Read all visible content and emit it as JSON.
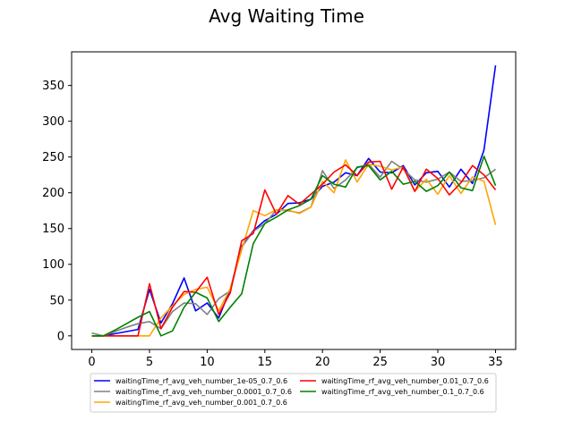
{
  "chart_data": {
    "type": "line",
    "title": "Avg Waiting Time",
    "xlabel": "",
    "ylabel": "",
    "xlim": [
      -1.75,
      36.75
    ],
    "ylim": [
      -19,
      397
    ],
    "xticks": [
      0,
      5,
      10,
      15,
      20,
      25,
      30,
      35
    ],
    "yticks": [
      0,
      50,
      100,
      150,
      200,
      250,
      300,
      350
    ],
    "grid": false,
    "legend_position": "below plot, two columns",
    "series": [
      {
        "name": "waitingTime_rf_avg_veh_number_1e-05_0.7_0.6",
        "color": "#0000ff",
        "x": [
          0,
          1,
          2,
          3,
          4,
          5,
          6,
          7,
          8,
          9,
          10,
          11,
          12,
          13,
          14,
          15,
          16,
          17,
          18,
          19,
          20,
          21,
          22,
          23,
          24,
          25,
          26,
          27,
          28,
          29,
          30,
          31,
          32,
          33,
          34,
          35
        ],
        "values": [
          0,
          0,
          3,
          6,
          9,
          65,
          18,
          45,
          81,
          35,
          46,
          25,
          65,
          125,
          147,
          161,
          170,
          185,
          186,
          191,
          209,
          215,
          228,
          224,
          248,
          229,
          228,
          238,
          211,
          228,
          230,
          208,
          233,
          213,
          260,
          378
        ]
      },
      {
        "name": "waitingTime_rf_avg_veh_number_0.0001_0.7_0.6",
        "color": "#808080",
        "x": [
          0,
          1,
          2,
          3,
          4,
          5,
          6,
          7,
          8,
          9,
          10,
          11,
          12,
          13,
          14,
          15,
          16,
          17,
          18,
          19,
          20,
          21,
          22,
          23,
          24,
          25,
          26,
          27,
          28,
          29,
          30,
          31,
          32,
          33,
          34,
          35
        ],
        "values": [
          4,
          0,
          6,
          12,
          17,
          20,
          10,
          34,
          46,
          45,
          30,
          52,
          63,
          124,
          146,
          157,
          176,
          175,
          172,
          180,
          231,
          206,
          218,
          235,
          240,
          222,
          244,
          233,
          218,
          215,
          219,
          229,
          216,
          217,
          221,
          233
        ]
      },
      {
        "name": "waitingTime_rf_avg_veh_number_0.001_0.7_0.6",
        "color": "#ffa500",
        "x": [
          0,
          1,
          2,
          3,
          4,
          5,
          6,
          7,
          8,
          9,
          10,
          11,
          12,
          13,
          14,
          15,
          16,
          17,
          18,
          19,
          20,
          21,
          22,
          23,
          24,
          25,
          26,
          27,
          28,
          29,
          30,
          31,
          32,
          33,
          34,
          35
        ],
        "values": [
          0,
          0,
          0,
          0,
          0,
          0,
          25,
          42,
          58,
          65,
          68,
          35,
          66,
          120,
          175,
          168,
          176,
          176,
          171,
          180,
          216,
          200,
          246,
          215,
          240,
          237,
          232,
          236,
          202,
          219,
          198,
          224,
          199,
          222,
          216,
          155
        ]
      },
      {
        "name": "waitingTime_rf_avg_veh_number_0.01_0.7_0.6",
        "color": "#ff0000",
        "x": [
          0,
          1,
          2,
          3,
          4,
          5,
          6,
          7,
          8,
          9,
          10,
          11,
          12,
          13,
          14,
          15,
          16,
          17,
          18,
          19,
          20,
          21,
          22,
          23,
          24,
          25,
          26,
          27,
          28,
          29,
          30,
          31,
          32,
          33,
          34,
          35
        ],
        "values": [
          0,
          0,
          0,
          0,
          0,
          73,
          10,
          40,
          62,
          61,
          82,
          30,
          60,
          133,
          143,
          204,
          170,
          196,
          184,
          198,
          212,
          229,
          239,
          224,
          243,
          244,
          205,
          236,
          202,
          233,
          220,
          197,
          214,
          238,
          225,
          204
        ]
      },
      {
        "name": "waitingTime_rf_avg_veh_number_0.1_0.7_0.6",
        "color": "#008000",
        "x": [
          0,
          1,
          2,
          3,
          4,
          5,
          6,
          7,
          8,
          9,
          10,
          11,
          12,
          13,
          14,
          15,
          16,
          17,
          18,
          19,
          20,
          21,
          22,
          23,
          24,
          25,
          26,
          27,
          28,
          29,
          30,
          31,
          32,
          33,
          34,
          35
        ],
        "values": [
          0,
          0,
          8,
          17,
          26,
          34,
          0,
          7,
          40,
          61,
          53,
          20,
          40,
          59,
          129,
          157,
          166,
          176,
          182,
          191,
          224,
          212,
          208,
          236,
          238,
          218,
          230,
          212,
          216,
          202,
          210,
          229,
          207,
          203,
          251,
          210
        ]
      }
    ]
  }
}
